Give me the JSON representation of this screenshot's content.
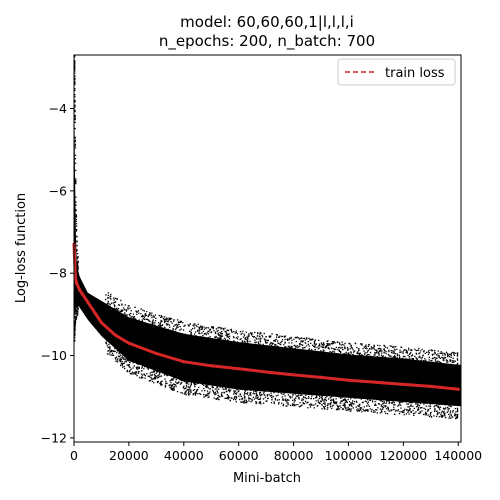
{
  "chart_data": {
    "type": "scatter",
    "title_line1": "model: 60,60,60,1|l,l,l,i",
    "title_line2": "n_epochs: 200, n_batch: 700",
    "xlabel": "Mini-batch",
    "ylabel": "Log-loss function",
    "xlim": [
      0,
      141000
    ],
    "ylim": [
      -12.1,
      -2.7
    ],
    "xticks": [
      0,
      20000,
      40000,
      60000,
      80000,
      100000,
      120000,
      140000
    ],
    "xtick_labels": [
      "0",
      "20000",
      "40000",
      "60000",
      "80000",
      "100000",
      "120000",
      "140000"
    ],
    "yticks": [
      -12,
      -10,
      -8,
      -6,
      -4
    ],
    "ytick_labels": [
      "−12",
      "−10",
      "−8",
      "−6",
      "−4"
    ],
    "legend_position": "top-right",
    "grid": false,
    "series": [
      {
        "name": "train loss",
        "style": "dashed",
        "color": "#d62728",
        "x": [
          0,
          500,
          1000,
          2000,
          3000,
          5000,
          8000,
          10000,
          15000,
          20000,
          30000,
          40000,
          50000,
          60000,
          70000,
          80000,
          90000,
          100000,
          110000,
          120000,
          130000,
          140000
        ],
        "y": [
          -7.3,
          -8.1,
          -8.25,
          -8.4,
          -8.5,
          -8.7,
          -9.0,
          -9.2,
          -9.5,
          -9.7,
          -9.95,
          -10.15,
          -10.25,
          -10.32,
          -10.4,
          -10.47,
          -10.53,
          -10.6,
          -10.65,
          -10.7,
          -10.75,
          -10.82
        ]
      },
      {
        "name": "",
        "style": "scatter",
        "color": "#000000",
        "x": [
          0,
          200,
          500,
          1000,
          2000,
          5000,
          10000,
          20000,
          40000,
          60000,
          80000,
          100000,
          120000,
          140000
        ],
        "y_lower": [
          -9.5,
          -9.0,
          -8.9,
          -8.8,
          -8.9,
          -9.2,
          -9.6,
          -10.2,
          -10.7,
          -10.9,
          -11.0,
          -11.1,
          -11.2,
          -11.3
        ],
        "y_upper": [
          -2.9,
          -4.5,
          -6.5,
          -7.7,
          -8.0,
          -8.4,
          -8.6,
          -9.0,
          -9.4,
          -9.6,
          -9.75,
          -9.9,
          -10.0,
          -10.15
        ]
      }
    ]
  }
}
